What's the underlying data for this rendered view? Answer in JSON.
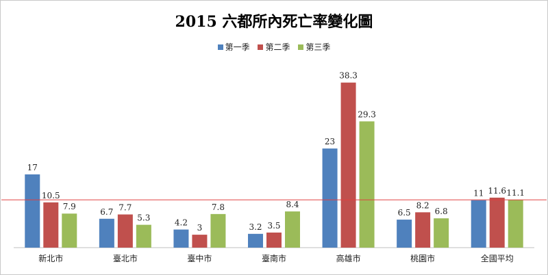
{
  "chart_data": {
    "type": "bar",
    "title": "2015 六都所內死亡率變化圖",
    "categories": [
      "新北市",
      "臺北市",
      "臺中市",
      "臺南市",
      "高雄市",
      "桃園市",
      "全國平均"
    ],
    "series": [
      {
        "name": "第一季",
        "color": "#4f81bd",
        "values": [
          17,
          6.7,
          4.2,
          3.2,
          23,
          6.5,
          11
        ]
      },
      {
        "name": "第二季",
        "color": "#c0504d",
        "values": [
          10.5,
          7.7,
          3,
          3.5,
          38.3,
          8.2,
          11.6
        ]
      },
      {
        "name": "第三季",
        "color": "#9bbb59",
        "values": [
          7.9,
          5.3,
          7.8,
          8.4,
          29.3,
          6.8,
          11.1
        ]
      }
    ],
    "value_labels": [
      [
        "17",
        "6.7",
        "4.2",
        "3.2",
        "23",
        "6.5",
        "11"
      ],
      [
        "10.5",
        "7.7",
        "3",
        "3.5",
        "38.3",
        "8.2",
        "11.6"
      ],
      [
        "7.9",
        "5.3",
        "7.8",
        "8.4",
        "29.3",
        "6.8",
        "11.1"
      ]
    ],
    "ylim": [
      0,
      40
    ],
    "reference_line": {
      "value": 11.1,
      "color": "#e04040"
    },
    "legend_position": "top",
    "grid": false,
    "xlabel": "",
    "ylabel": ""
  }
}
